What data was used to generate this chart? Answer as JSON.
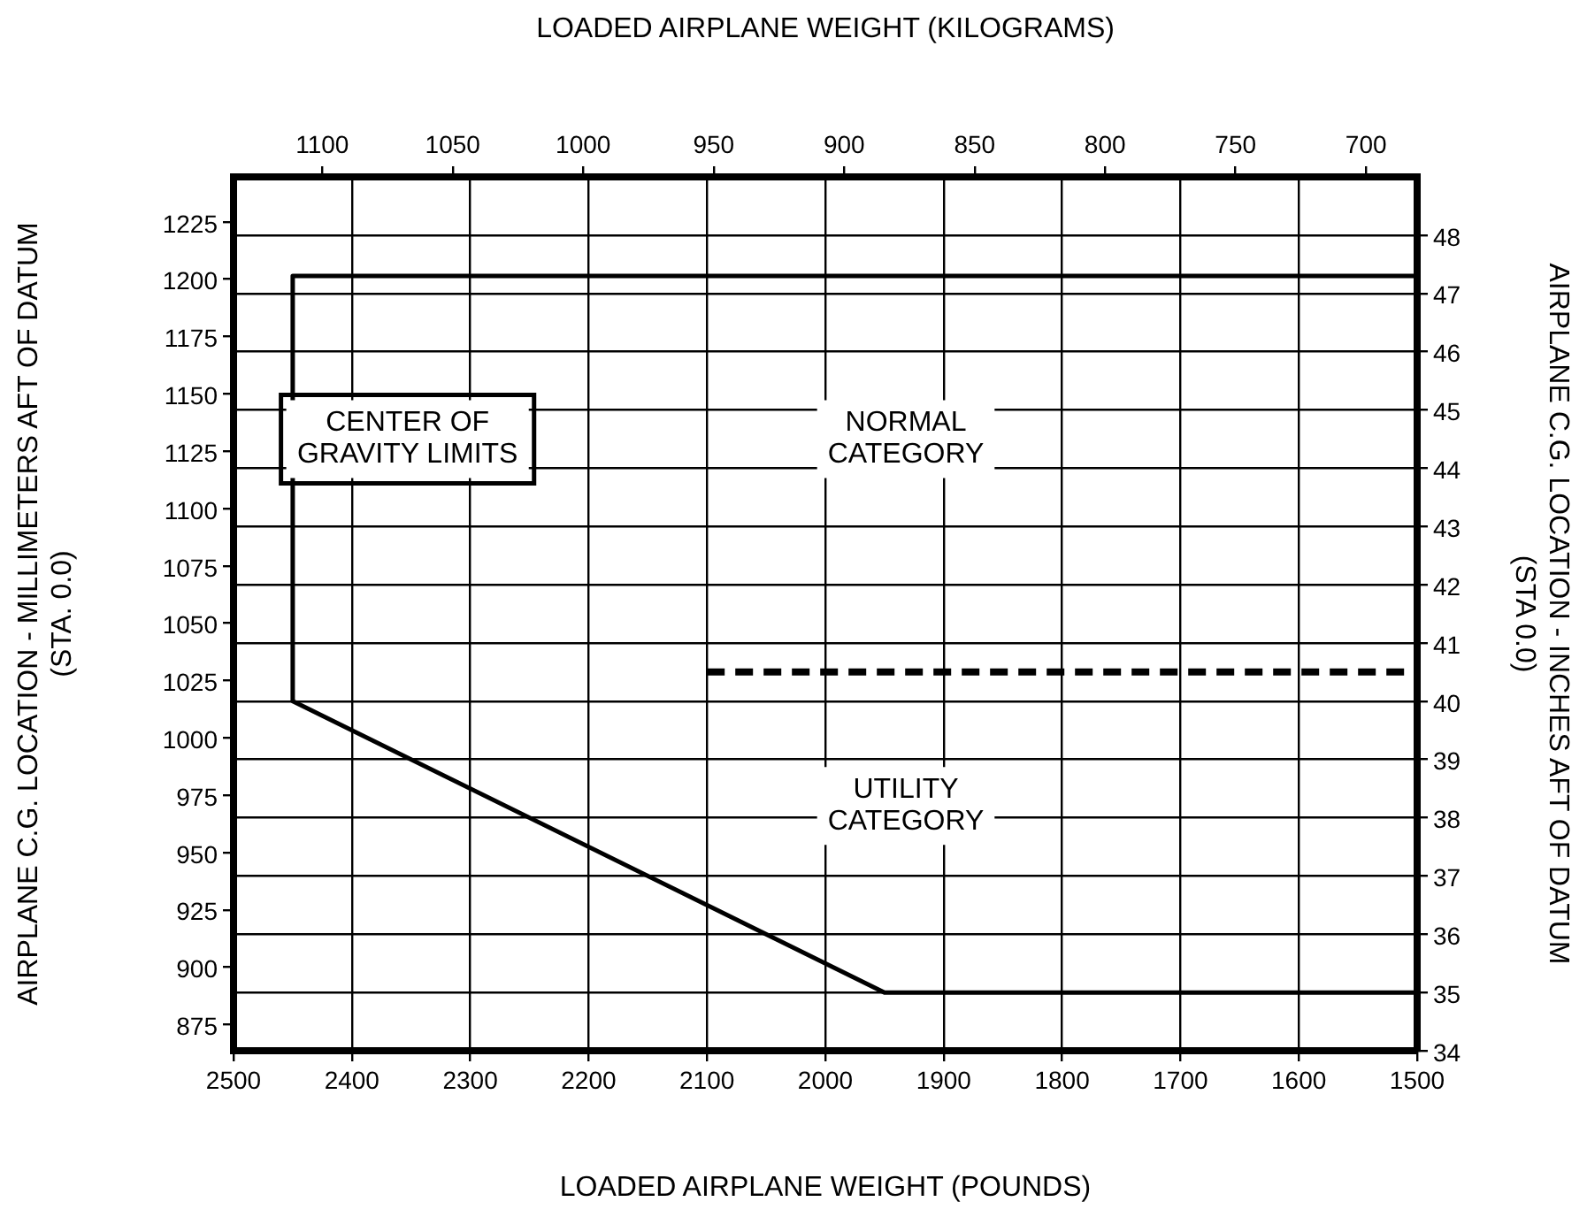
{
  "chart_data": {
    "type": "line",
    "xlabel": "LOADED AIRPLANE WEIGHT (POUNDS)",
    "x2label": "LOADED AIRPLANE WEIGHT (KILOGRAMS)",
    "ylabel": "AIRPLANE C.G. LOCATION - INCHES AFT OF DATUM\n(STA 0.0)",
    "y2label": "AIRPLANE C.G. LOCATION - MILLIMETERS AFT OF DATUM\n(STA. 0.0)",
    "xlim": [
      2500,
      1500
    ],
    "xticks": [
      2500,
      2400,
      2300,
      2200,
      2100,
      2000,
      1900,
      1800,
      1700,
      1600,
      1500
    ],
    "x2lim": [
      1134.0,
      680.4
    ],
    "x2ticks": [
      1100,
      1050,
      1000,
      950,
      900,
      850,
      800,
      750,
      700
    ],
    "ylim": [
      34,
      49
    ],
    "yticks": [
      34,
      35,
      36,
      37,
      38,
      39,
      40,
      41,
      42,
      43,
      44,
      45,
      46,
      47,
      48
    ],
    "y2lim": [
      863.6,
      1244.6
    ],
    "y2ticks": [
      875,
      900,
      925,
      950,
      975,
      1000,
      1025,
      1050,
      1075,
      1100,
      1125,
      1150,
      1175,
      1200,
      1225
    ],
    "series": [
      {
        "color": "#000000",
        "x": [
          1500,
          1950,
          2450,
          2450,
          1500
        ],
        "values": [
          35.0,
          35.0,
          40.0,
          47.3,
          47.3
        ],
        "line_style": "solid"
      },
      {
        "color": "#000000",
        "x": [
          2100,
          1500
        ],
        "values": [
          40.5,
          40.5
        ],
        "line_style": "dashed"
      }
    ],
    "annotations": [
      "CENTER OF\nGRAVITY LIMITS",
      "NORMAL\nCATEGORY",
      "UTILITY\nCATEGORY"
    ],
    "grid": true,
    "legend": false,
    "marker": "none"
  }
}
